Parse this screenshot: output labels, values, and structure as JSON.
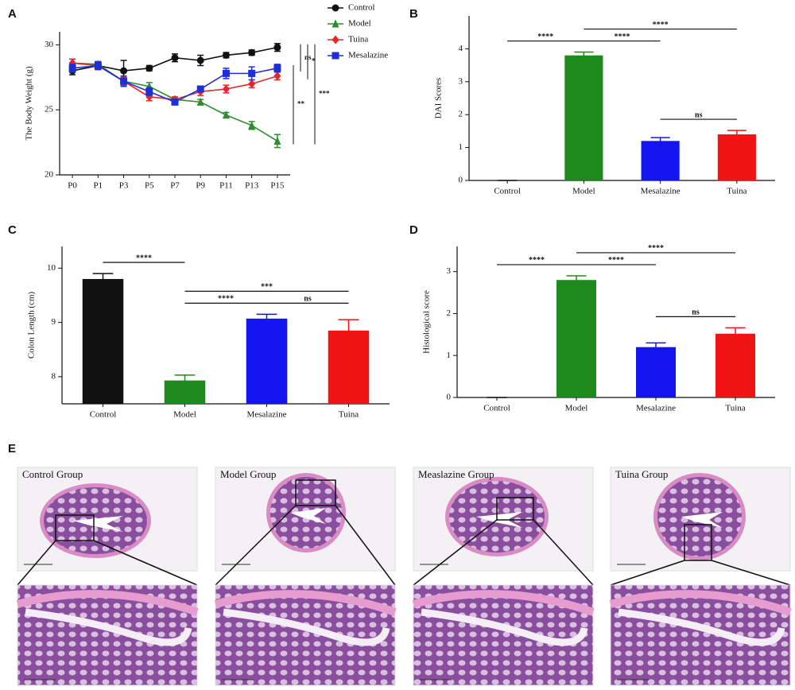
{
  "chart_data": [
    {
      "panel": "A",
      "type": "line",
      "y_label": "The Body Weight (g)",
      "categories": [
        "P0",
        "P1",
        "P3",
        "P5",
        "P7",
        "P9",
        "P11",
        "P13",
        "P15"
      ],
      "ylim": [
        20,
        31
      ],
      "yticks": [
        20,
        25,
        30
      ],
      "series": [
        {
          "name": "Control",
          "color": "#111111",
          "marker": "circle",
          "values": [
            28.0,
            28.4,
            28.0,
            28.2,
            29.0,
            28.8,
            29.2,
            29.4,
            29.8
          ],
          "errors": [
            0.3,
            0.3,
            0.8,
            0.2,
            0.3,
            0.4,
            0.2,
            0.2,
            0.3
          ]
        },
        {
          "name": "Model",
          "color": "#2e8b2e",
          "marker": "triangle",
          "values": [
            28.6,
            28.5,
            27.2,
            26.8,
            25.8,
            25.6,
            24.6,
            23.8,
            22.6
          ],
          "errors": [
            0.3,
            0.2,
            0.3,
            0.3,
            0.2,
            0.2,
            0.2,
            0.3,
            0.5
          ]
        },
        {
          "name": "Tuina",
          "color": "#e8262a",
          "marker": "diamond",
          "values": [
            28.6,
            28.4,
            27.2,
            26.0,
            25.8,
            26.4,
            26.6,
            27.0,
            27.6
          ],
          "errors": [
            0.3,
            0.3,
            0.3,
            0.3,
            0.2,
            0.3,
            0.3,
            0.3,
            0.3
          ]
        },
        {
          "name": "Mesalazine",
          "color": "#1f2fd6",
          "marker": "square",
          "values": [
            28.2,
            28.4,
            27.2,
            26.4,
            25.6,
            26.6,
            27.8,
            27.8,
            28.2
          ],
          "errors": [
            0.3,
            0.3,
            0.4,
            0.3,
            0.2,
            0.2,
            0.4,
            0.5,
            0.3
          ]
        }
      ],
      "annotations": [
        {
          "text": "**",
          "pair": [
            3,
            1
          ]
        },
        {
          "text": "ns",
          "pair": [
            0,
            3
          ]
        },
        {
          "text": "*",
          "pair": [
            0,
            2
          ]
        },
        {
          "text": "***",
          "pair": [
            0,
            1
          ]
        }
      ]
    },
    {
      "panel": "B",
      "type": "bar",
      "y_label": "DAI Scores",
      "categories": [
        "Control",
        "Model",
        "Mesalazine",
        "Tuina"
      ],
      "values": [
        0,
        3.8,
        1.2,
        1.4
      ],
      "errors": [
        0,
        0.1,
        0.1,
        0.12
      ],
      "colors": [
        "#111111",
        "#1e8a1e",
        "#1414f0",
        "#f01414"
      ],
      "ylim": [
        0,
        5
      ],
      "yticks": [
        0,
        1,
        2,
        3,
        4
      ],
      "annotations": [
        {
          "text": "****",
          "pair": [
            0,
            1
          ]
        },
        {
          "text": "****",
          "pair": [
            1,
            2
          ]
        },
        {
          "text": "****",
          "pair": [
            1,
            3
          ]
        },
        {
          "text": "ns",
          "pair": [
            2,
            3
          ]
        }
      ]
    },
    {
      "panel": "C",
      "type": "bar",
      "y_label": "Colon Length (cm)",
      "categories": [
        "Control",
        "Model",
        "Mesalazine",
        "Tuina"
      ],
      "values": [
        9.8,
        7.93,
        9.07,
        8.85
      ],
      "errors": [
        0.1,
        0.1,
        0.08,
        0.2
      ],
      "colors": [
        "#111111",
        "#1e8a1e",
        "#1414f0",
        "#f01414"
      ],
      "ylim": [
        7.5,
        10.4
      ],
      "yticks": [
        8,
        9,
        10
      ],
      "annotations": [
        {
          "text": "****",
          "pair": [
            0,
            1
          ]
        },
        {
          "text": "****",
          "pair": [
            1,
            2
          ]
        },
        {
          "text": "ns",
          "pair": [
            2,
            3
          ]
        },
        {
          "text": "***",
          "pair": [
            1,
            3
          ]
        }
      ]
    },
    {
      "panel": "D",
      "type": "bar",
      "y_label": "Histological score",
      "categories": [
        "Control",
        "Model",
        "Mesalazine",
        "Tuina"
      ],
      "values": [
        0,
        2.8,
        1.2,
        1.52
      ],
      "errors": [
        0,
        0.1,
        0.1,
        0.14
      ],
      "colors": [
        "#111111",
        "#1e8a1e",
        "#1414f0",
        "#f01414"
      ],
      "ylim": [
        0,
        3.6
      ],
      "yticks": [
        0,
        1,
        2,
        3
      ],
      "annotations": [
        {
          "text": "****",
          "pair": [
            0,
            1
          ]
        },
        {
          "text": "****",
          "pair": [
            1,
            2
          ]
        },
        {
          "text": "****",
          "pair": [
            1,
            3
          ]
        },
        {
          "text": "ns",
          "pair": [
            2,
            3
          ]
        }
      ]
    }
  ],
  "panel_e": {
    "label": "E",
    "groups": [
      "Control Group",
      "Model Group",
      "Measlazine Group",
      "Tuina Group"
    ]
  }
}
